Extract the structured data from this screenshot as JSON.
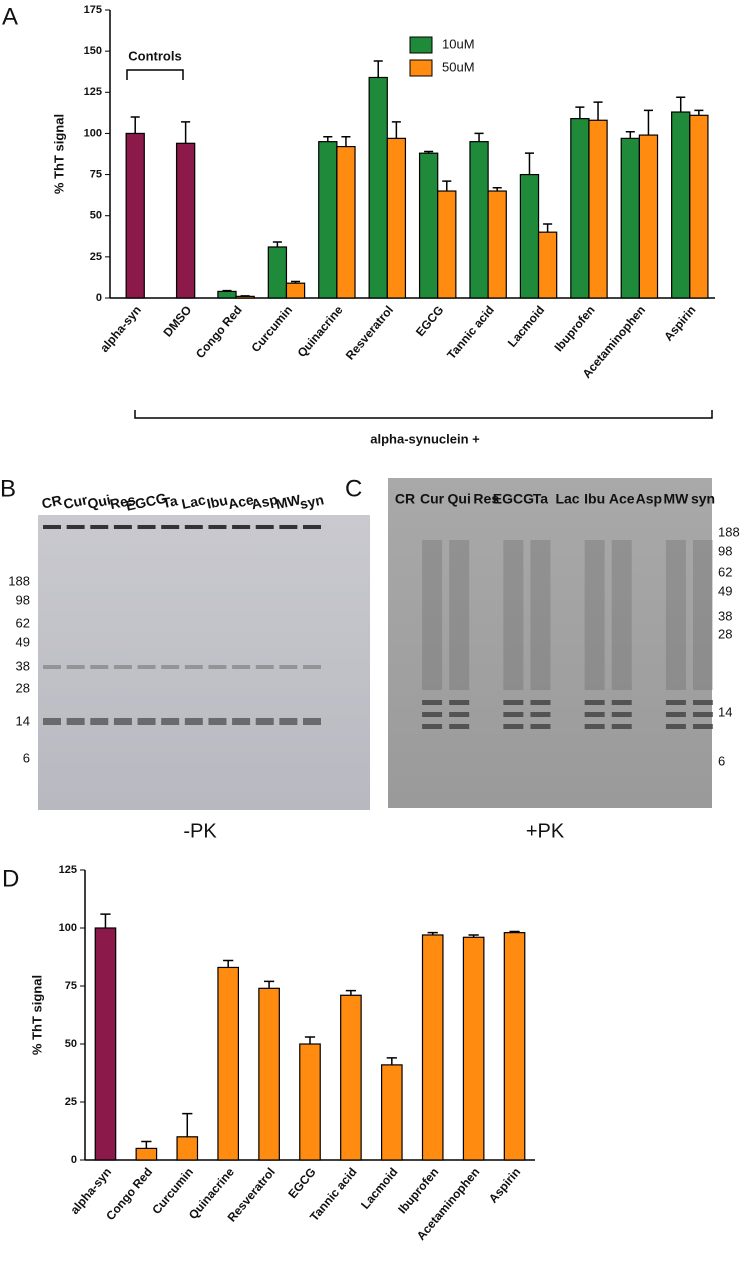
{
  "chart_data": [
    {
      "type": "bar",
      "panel": "A",
      "ylabel": "% ThT signal",
      "categories": [
        "alpha-syn",
        "DMSO",
        "Congo Red",
        "Curcumin",
        "Quinacrine",
        "Resveratrol",
        "EGCG",
        "Tannic acid",
        "Lacmoid",
        "Ibuprofen",
        "Acetaminophen",
        "Aspirin"
      ],
      "series": [
        {
          "color": "#8b1a4a",
          "values": [
            100,
            94,
            null,
            null,
            null,
            null,
            null,
            null,
            null,
            null,
            null,
            null
          ],
          "errors": [
            10,
            13,
            null,
            null,
            null,
            null,
            null,
            null,
            null,
            null,
            null,
            null
          ]
        },
        {
          "name": "10uM",
          "color": "#1f8a3a",
          "values": [
            null,
            null,
            4,
            31,
            95,
            134,
            88,
            95,
            75,
            109,
            97,
            113
          ],
          "errors": [
            null,
            null,
            0.5,
            3,
            3,
            10,
            1,
            5,
            13,
            7,
            4,
            9
          ]
        },
        {
          "name": "50uM",
          "color": "#ff8c10",
          "values": [
            null,
            null,
            1,
            9,
            92,
            97,
            65,
            65,
            40,
            108,
            99,
            111
          ],
          "errors": [
            null,
            null,
            0.3,
            1,
            6,
            10,
            6,
            2,
            5,
            11,
            15,
            3
          ]
        }
      ],
      "ylim": [
        0,
        175
      ],
      "yticks": [
        0,
        25,
        50,
        75,
        100,
        125,
        150,
        175
      ],
      "annotations": [
        "Controls",
        "alpha-synuclein +"
      ]
    },
    {
      "type": "bar",
      "panel": "D",
      "ylabel": "% ThT signal",
      "categories": [
        "alpha-syn",
        "Congo Red",
        "Curcumin",
        "Quinacrine",
        "Resveratrol",
        "EGCG",
        "Tannic acid",
        "Lacmoid",
        "Ibuprofen",
        "Acetaminophen",
        "Aspirin"
      ],
      "values": [
        100,
        5,
        10,
        83,
        74,
        50,
        71,
        41,
        97,
        96,
        98
      ],
      "errors": [
        6,
        3,
        10,
        3,
        3,
        3,
        2,
        3,
        1,
        1,
        0.5
      ],
      "colors": [
        "#8b1a4a",
        "#ff8c10",
        "#ff8c10",
        "#ff8c10",
        "#ff8c10",
        "#ff8c10",
        "#ff8c10",
        "#ff8c10",
        "#ff8c10",
        "#ff8c10",
        "#ff8c10"
      ],
      "ylim": [
        0,
        125
      ],
      "yticks": [
        0,
        25,
        50,
        75,
        100,
        125
      ]
    }
  ],
  "gels": [
    {
      "panel": "B",
      "lanes": [
        "CR",
        "Cur",
        "Qui",
        "Res",
        "EGCG",
        "Ta",
        "Lac",
        "Ibu",
        "Ace",
        "Asp",
        "MW",
        "syn"
      ],
      "markers": [
        "188",
        "98",
        "62",
        "49",
        "38",
        "28",
        "14",
        "6"
      ],
      "caption": "-PK"
    },
    {
      "panel": "C",
      "lanes": [
        "CR",
        "Cur",
        "Qui",
        "Res",
        "EGCG",
        "Ta",
        "Lac",
        "Ibu",
        "Ace",
        "Asp",
        "MW",
        "syn"
      ],
      "markers": [
        "188",
        "98",
        "62",
        "49",
        "38",
        "28",
        "14",
        "6"
      ],
      "caption": "+PK"
    }
  ]
}
